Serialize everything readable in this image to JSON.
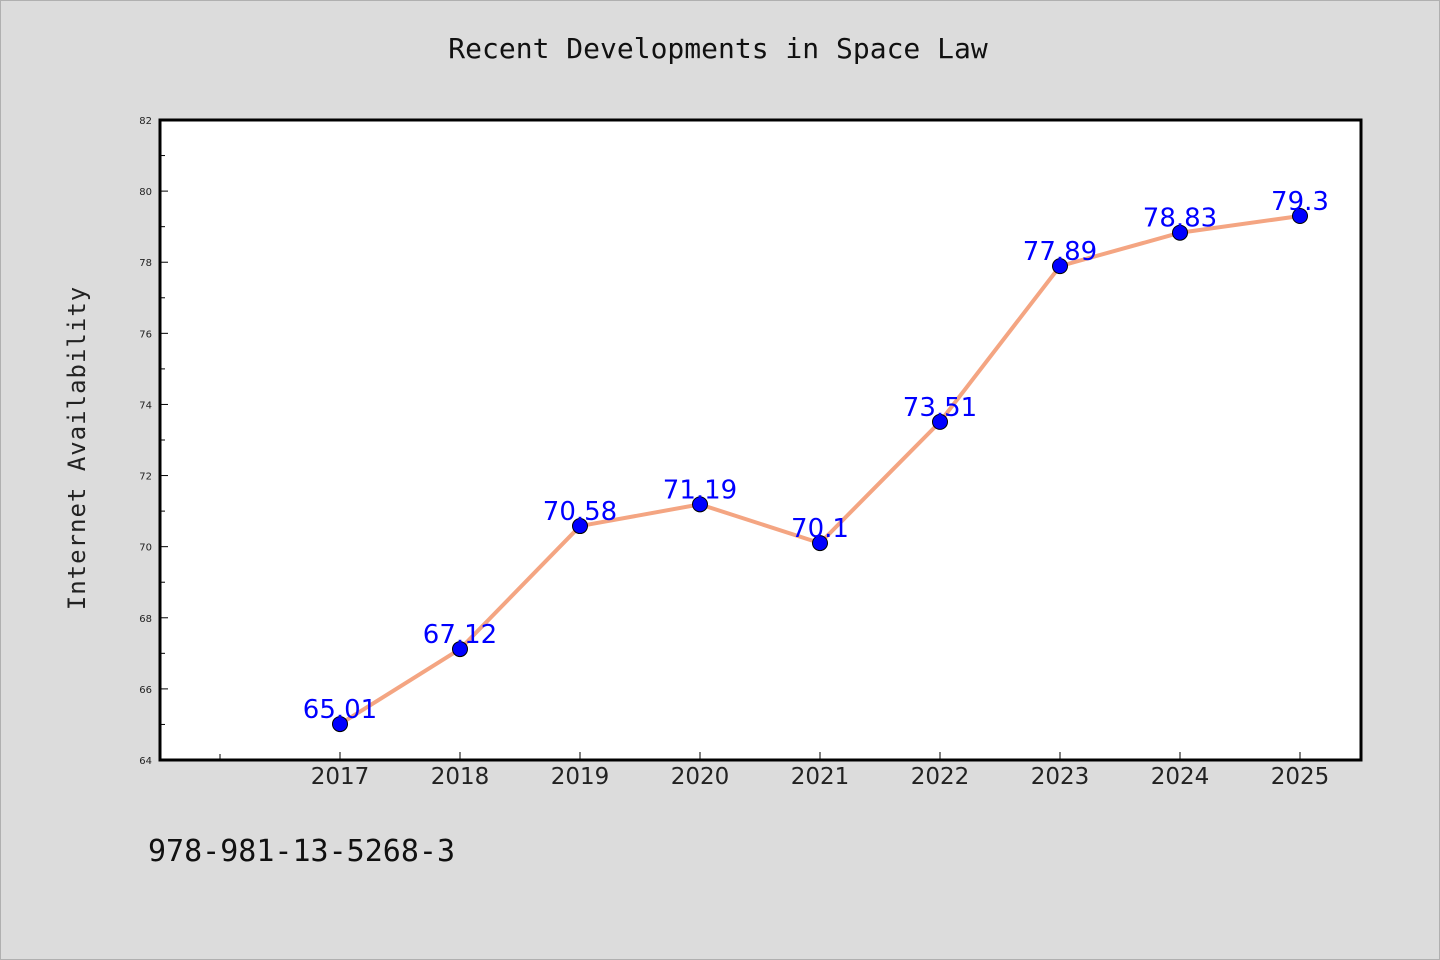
{
  "chart_data": {
    "type": "line",
    "title": "Recent Developments in Space Law",
    "ylabel": "Internet Availability",
    "xlabel": "",
    "categories": [
      "2017",
      "2018",
      "2019",
      "2020",
      "2021",
      "2022",
      "2023",
      "2024",
      "2025"
    ],
    "series": [
      {
        "values": [
          65.01,
          67.12,
          70.58,
          71.19,
          70.1,
          73.51,
          77.89,
          78.83,
          79.3
        ],
        "labels": [
          "65.01",
          "67.12",
          "70.58",
          "71.19",
          "70.1",
          "73.51",
          "77.89",
          "78.83",
          "79.3"
        ],
        "line_color": "#f4a582",
        "marker_color": "#0000ff",
        "label_color": "#0000ff"
      }
    ],
    "ylim": [
      64,
      82
    ],
    "yticks": [
      "64",
      "66",
      "68",
      "70",
      "72",
      "74",
      "76",
      "78",
      "80",
      "82"
    ],
    "grid": false,
    "legend": "none"
  },
  "footer": {
    "isbn": "978-981-13-5268-3"
  }
}
